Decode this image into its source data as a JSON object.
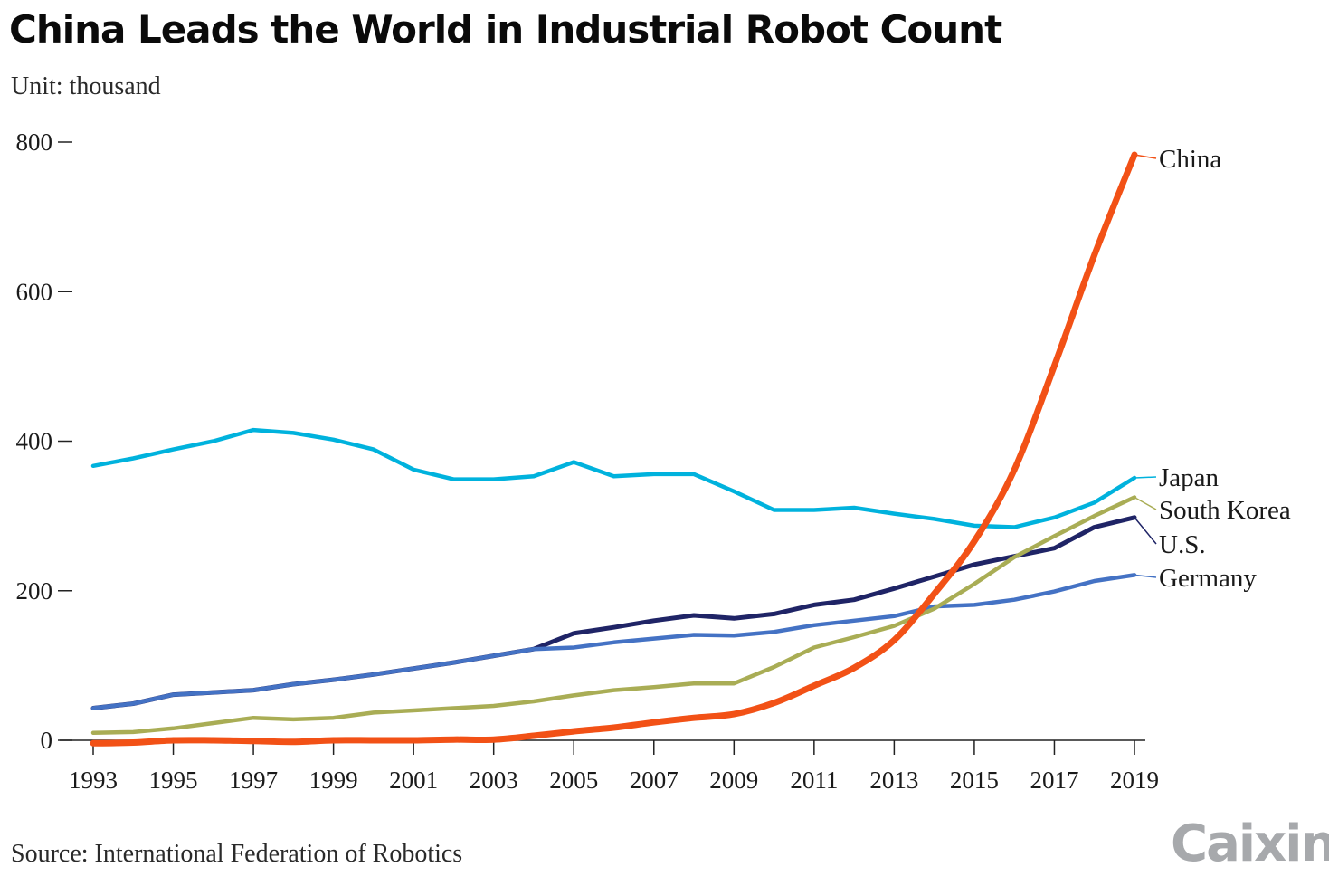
{
  "title": "China Leads the World in Industrial Robot Count",
  "subtitle": "Unit: thousand",
  "source": "Source: International Federation of Robotics",
  "brand": "Caixin",
  "chart_data": {
    "type": "line",
    "title": "China Leads the World in Industrial Robot Count",
    "ylabel": "Unit: thousand",
    "xlabel": "",
    "ylim": [
      0,
      800
    ],
    "yticks": [
      0,
      200,
      400,
      600,
      800
    ],
    "xlim": [
      1993,
      2019
    ],
    "xticks": [
      1993,
      1995,
      1997,
      1999,
      2001,
      2003,
      2005,
      2007,
      2009,
      2011,
      2013,
      2015,
      2017,
      2019
    ],
    "grid": false,
    "legend": "right, labels at line ends",
    "x": [
      1993,
      1994,
      1995,
      1996,
      1997,
      1998,
      1999,
      2000,
      2001,
      2002,
      2003,
      2004,
      2005,
      2006,
      2007,
      2008,
      2009,
      2010,
      2011,
      2012,
      2013,
      2014,
      2015,
      2016,
      2017,
      2018,
      2019
    ],
    "series": [
      {
        "name": "Japan",
        "color": "#00b2dd",
        "values": [
          367,
          377,
          389,
          400,
          415,
          411,
          402,
          389,
          362,
          349,
          349,
          353,
          372,
          353,
          356,
          356,
          333,
          308,
          308,
          311,
          303,
          296,
          287,
          285,
          298,
          318,
          351
        ]
      },
      {
        "name": "U.S.",
        "color": "#1f2466",
        "values": [
          43,
          49,
          61,
          64,
          67,
          75,
          81,
          88,
          96,
          104,
          113,
          122,
          143,
          151,
          160,
          167,
          163,
          169,
          181,
          188,
          203,
          219,
          235,
          246,
          257,
          285,
          298
        ]
      },
      {
        "name": "Germany",
        "color": "#4472c4",
        "values": [
          43,
          49,
          61,
          64,
          67,
          75,
          81,
          88,
          96,
          104,
          113,
          122,
          124,
          131,
          136,
          141,
          140,
          145,
          154,
          160,
          166,
          179,
          181,
          188,
          199,
          213,
          221
        ]
      },
      {
        "name": "South Korea",
        "color": "#a9ad55",
        "values": [
          10,
          11,
          16,
          23,
          30,
          28,
          30,
          37,
          40,
          43,
          46,
          52,
          60,
          67,
          71,
          76,
          76,
          98,
          124,
          138,
          153,
          176,
          209,
          245,
          273,
          300,
          325
        ]
      },
      {
        "name": "China",
        "color": "#f25116",
        "values": [
          -4,
          -3,
          0,
          0,
          -1,
          -2,
          0,
          0,
          0,
          1,
          1,
          6,
          12,
          17,
          24,
          30,
          35,
          50,
          73,
          97,
          134,
          196,
          266,
          362,
          501,
          649,
          783
        ]
      }
    ]
  }
}
